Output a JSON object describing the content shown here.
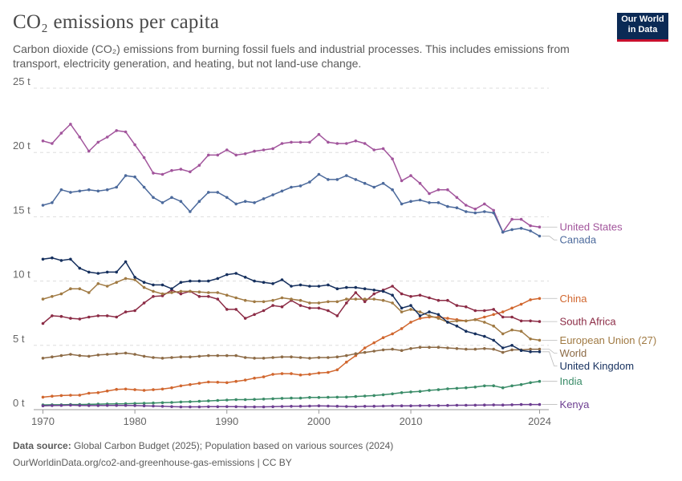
{
  "header": {
    "title": "CO₂ emissions per capita",
    "subtitle": "Carbon dioxide (CO₂) emissions from burning fossil fuels and industrial processes. This includes emissions from transport, electricity generation, and heating, but not land-use change."
  },
  "logo": {
    "line1": "Our World",
    "line2": "in Data",
    "bg": "#0b2a55",
    "accent": "#c8102e"
  },
  "footer": {
    "source_label": "Data source:",
    "source_text": " Global Carbon Budget (2025); Population based on various sources (2024)",
    "url_text": "OurWorldinData.org/co2-and-greenhouse-gas-emissions | CC BY"
  },
  "chart_data": {
    "type": "line",
    "y_tick_labels": [
      "0 t",
      "5 t",
      "10 t",
      "15 t",
      "20 t",
      "25 t"
    ],
    "y_ticks": [
      0,
      5,
      10,
      15,
      20,
      25
    ],
    "ylim": [
      0,
      25
    ],
    "x_tick_labels": [
      "1970",
      "1980",
      "1990",
      "2000",
      "2010",
      "2024"
    ],
    "x_ticks": [
      1970,
      1980,
      1990,
      2000,
      2010,
      2024
    ],
    "xlim": [
      1969,
      2025
    ],
    "grid": "horizontal dashed",
    "legend": "right (labels at line ends)",
    "series": [
      {
        "name": "United States",
        "color": "#a2559c",
        "values": [
          20.9,
          20.7,
          21.5,
          22.2,
          21.2,
          20.1,
          20.8,
          21.2,
          21.7,
          21.6,
          20.6,
          19.6,
          18.4,
          18.3,
          18.6,
          18.7,
          18.5,
          19.0,
          19.8,
          19.8,
          20.2,
          19.8,
          19.9,
          20.1,
          20.2,
          20.3,
          20.7,
          20.8,
          20.8,
          20.8,
          21.4,
          20.8,
          20.7,
          20.7,
          20.9,
          20.7,
          20.2,
          20.3,
          19.5,
          17.8,
          18.2,
          17.6,
          16.8,
          17.1,
          17.1,
          16.5,
          15.9,
          15.6,
          16.0,
          15.5,
          13.8,
          14.8,
          14.8,
          14.3,
          14.2
        ]
      },
      {
        "name": "Canada",
        "color": "#4c6a9c",
        "values": [
          15.9,
          16.1,
          17.1,
          16.9,
          17.0,
          17.1,
          17.0,
          17.1,
          17.3,
          18.2,
          18.1,
          17.3,
          16.5,
          16.1,
          16.5,
          16.2,
          15.4,
          16.2,
          16.9,
          16.9,
          16.5,
          16.0,
          16.2,
          16.1,
          16.4,
          16.7,
          17.0,
          17.3,
          17.4,
          17.7,
          18.3,
          17.9,
          17.9,
          18.2,
          17.9,
          17.6,
          17.3,
          17.6,
          17.1,
          16.0,
          16.2,
          16.3,
          16.1,
          16.1,
          15.8,
          15.7,
          15.4,
          15.3,
          15.4,
          15.3,
          13.8,
          14.0,
          14.1,
          13.9,
          13.5
        ]
      },
      {
        "name": "China",
        "color": "#d1672f",
        "values": [
          0.97,
          1.05,
          1.1,
          1.12,
          1.13,
          1.28,
          1.32,
          1.45,
          1.58,
          1.6,
          1.55,
          1.5,
          1.55,
          1.6,
          1.7,
          1.85,
          1.95,
          2.05,
          2.15,
          2.13,
          2.1,
          2.2,
          2.3,
          2.45,
          2.55,
          2.75,
          2.8,
          2.8,
          2.7,
          2.75,
          2.85,
          2.9,
          3.1,
          3.7,
          4.2,
          4.8,
          5.2,
          5.6,
          5.9,
          6.3,
          6.8,
          7.1,
          7.2,
          7.2,
          7.1,
          7.0,
          6.9,
          7.0,
          7.2,
          7.4,
          7.6,
          7.9,
          8.2,
          8.55,
          8.65
        ]
      },
      {
        "name": "South Africa",
        "color": "#8c2c46",
        "values": [
          6.7,
          7.3,
          7.25,
          7.1,
          7.05,
          7.2,
          7.3,
          7.3,
          7.2,
          7.6,
          7.7,
          8.3,
          8.8,
          8.85,
          9.3,
          9.0,
          9.2,
          8.8,
          8.8,
          8.6,
          7.8,
          7.8,
          7.1,
          7.4,
          7.7,
          8.1,
          8.0,
          8.5,
          8.1,
          7.9,
          7.9,
          7.7,
          7.3,
          8.3,
          9.1,
          8.4,
          9.0,
          9.3,
          9.6,
          9.0,
          8.8,
          8.9,
          8.7,
          8.5,
          8.5,
          8.1,
          8.0,
          7.7,
          7.7,
          7.8,
          7.2,
          7.2,
          6.9,
          6.9,
          6.85
        ]
      },
      {
        "name": "European Union (27)",
        "color": "#a07a43",
        "values": [
          8.6,
          8.8,
          9.0,
          9.4,
          9.4,
          9.1,
          9.8,
          9.6,
          9.9,
          10.2,
          10.1,
          9.5,
          9.2,
          9.0,
          9.1,
          9.2,
          9.2,
          9.15,
          9.1,
          9.1,
          8.9,
          8.7,
          8.5,
          8.4,
          8.4,
          8.5,
          8.7,
          8.6,
          8.5,
          8.3,
          8.3,
          8.4,
          8.4,
          8.6,
          8.6,
          8.6,
          8.6,
          8.5,
          8.3,
          7.6,
          7.8,
          7.6,
          7.3,
          7.1,
          6.8,
          6.9,
          6.9,
          7.0,
          6.8,
          6.5,
          5.9,
          6.2,
          6.1,
          5.5,
          5.4
        ]
      },
      {
        "name": "World",
        "color": "#8d6b46",
        "values": [
          4.0,
          4.1,
          4.2,
          4.3,
          4.2,
          4.15,
          4.25,
          4.3,
          4.35,
          4.4,
          4.3,
          4.15,
          4.05,
          4.0,
          4.05,
          4.1,
          4.1,
          4.15,
          4.2,
          4.2,
          4.2,
          4.2,
          4.05,
          4.0,
          4.0,
          4.05,
          4.1,
          4.1,
          4.05,
          4.0,
          4.05,
          4.05,
          4.1,
          4.2,
          4.35,
          4.45,
          4.55,
          4.65,
          4.7,
          4.6,
          4.75,
          4.85,
          4.85,
          4.85,
          4.8,
          4.75,
          4.7,
          4.7,
          4.75,
          4.7,
          4.45,
          4.65,
          4.65,
          4.7,
          4.7
        ]
      },
      {
        "name": "United Kingdom",
        "color": "#16305e",
        "values": [
          11.7,
          11.8,
          11.6,
          11.7,
          11.0,
          10.7,
          10.6,
          10.7,
          10.7,
          11.5,
          10.3,
          9.9,
          9.7,
          9.7,
          9.4,
          9.9,
          10.0,
          10.0,
          10.0,
          10.2,
          10.5,
          10.6,
          10.3,
          10.0,
          9.9,
          9.8,
          10.1,
          9.6,
          9.7,
          9.6,
          9.6,
          9.7,
          9.4,
          9.5,
          9.5,
          9.4,
          9.3,
          9.2,
          8.9,
          7.9,
          8.1,
          7.3,
          7.6,
          7.4,
          6.8,
          6.5,
          6.1,
          5.9,
          5.7,
          5.4,
          4.8,
          5.0,
          4.6,
          4.5,
          4.5
        ]
      },
      {
        "name": "India",
        "color": "#3a8c68",
        "values": [
          0.37,
          0.38,
          0.38,
          0.4,
          0.4,
          0.41,
          0.43,
          0.44,
          0.45,
          0.46,
          0.48,
          0.5,
          0.52,
          0.54,
          0.56,
          0.6,
          0.62,
          0.65,
          0.68,
          0.72,
          0.75,
          0.78,
          0.78,
          0.8,
          0.82,
          0.85,
          0.88,
          0.9,
          0.9,
          0.95,
          0.95,
          0.96,
          0.97,
          0.98,
          1.02,
          1.06,
          1.1,
          1.16,
          1.23,
          1.32,
          1.38,
          1.42,
          1.5,
          1.55,
          1.62,
          1.66,
          1.7,
          1.76,
          1.85,
          1.86,
          1.7,
          1.85,
          1.95,
          2.1,
          2.2
        ]
      },
      {
        "name": "Kenya",
        "color": "#6d3e91",
        "values": [
          0.3,
          0.32,
          0.33,
          0.35,
          0.33,
          0.32,
          0.32,
          0.33,
          0.33,
          0.33,
          0.32,
          0.3,
          0.28,
          0.26,
          0.24,
          0.22,
          0.22,
          0.22,
          0.23,
          0.23,
          0.24,
          0.23,
          0.22,
          0.22,
          0.22,
          0.23,
          0.25,
          0.26,
          0.27,
          0.28,
          0.3,
          0.28,
          0.27,
          0.25,
          0.24,
          0.26,
          0.27,
          0.28,
          0.3,
          0.3,
          0.3,
          0.31,
          0.32,
          0.32,
          0.33,
          0.34,
          0.34,
          0.35,
          0.36,
          0.37,
          0.36,
          0.38,
          0.4,
          0.4,
          0.4
        ]
      }
    ]
  }
}
